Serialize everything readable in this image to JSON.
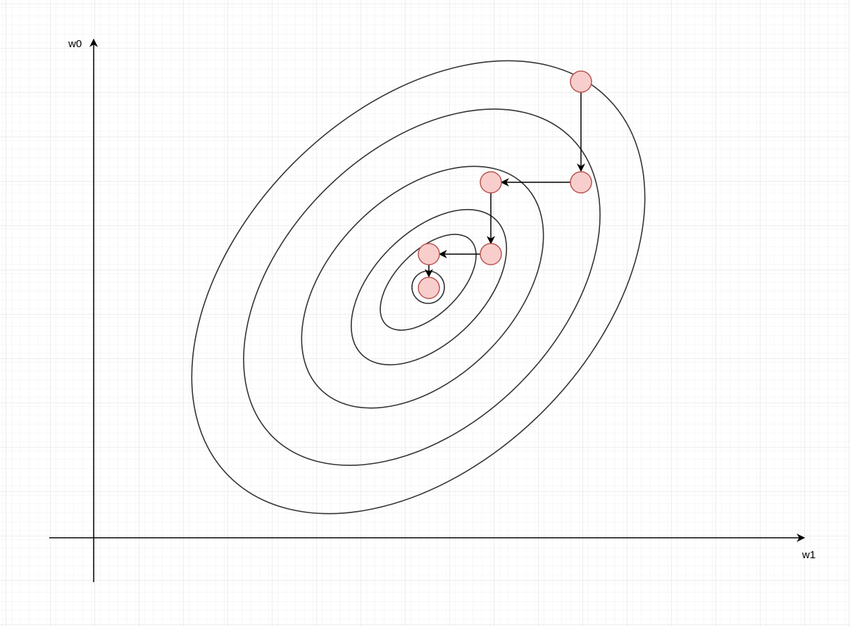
{
  "axes": {
    "y_label": "w0",
    "x_label": "w1"
  }
}
